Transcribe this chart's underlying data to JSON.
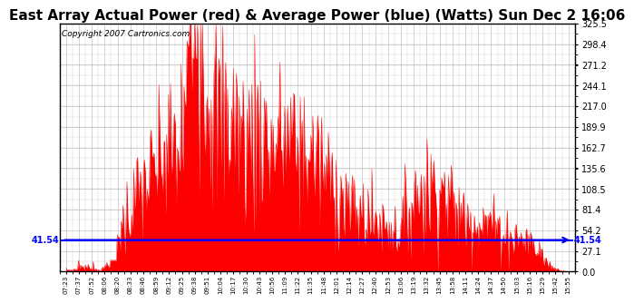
{
  "title": "East Array Actual Power (red) & Average Power (blue) (Watts) Sun Dec 2 16:06",
  "copyright": "Copyright 2007 Cartronics.com",
  "avg_value": 41.54,
  "ymax": 325.5,
  "ymin": 0.0,
  "yticks": [
    0.0,
    27.1,
    54.2,
    81.4,
    108.5,
    135.6,
    162.7,
    189.9,
    217.0,
    244.1,
    271.2,
    298.4,
    325.5
  ],
  "line_color": "blue",
  "fill_color": "red",
  "bg_color": "white",
  "grid_color": "#bbbbbb",
  "title_fontsize": 11,
  "copyright_fontsize": 6.5,
  "tick_labels": [
    "07:23",
    "07:37",
    "07:52",
    "08:06",
    "08:20",
    "08:33",
    "08:46",
    "08:59",
    "09:12",
    "09:25",
    "09:38",
    "09:51",
    "10:04",
    "10:17",
    "10:30",
    "10:43",
    "10:56",
    "11:09",
    "11:22",
    "11:35",
    "11:48",
    "12:01",
    "12:14",
    "12:27",
    "12:40",
    "12:53",
    "13:06",
    "13:19",
    "13:32",
    "13:45",
    "13:58",
    "14:11",
    "14:24",
    "14:37",
    "14:50",
    "15:03",
    "15:16",
    "15:29",
    "15:42",
    "15:55"
  ],
  "power_envelope": [
    3,
    4,
    5,
    6,
    45,
    80,
    110,
    130,
    155,
    175,
    325,
    250,
    195,
    200,
    170,
    185,
    165,
    175,
    160,
    155,
    130,
    110,
    80,
    75,
    65,
    60,
    55,
    95,
    105,
    110,
    85,
    70,
    65,
    60,
    50,
    45,
    38,
    30,
    18,
    8
  ]
}
